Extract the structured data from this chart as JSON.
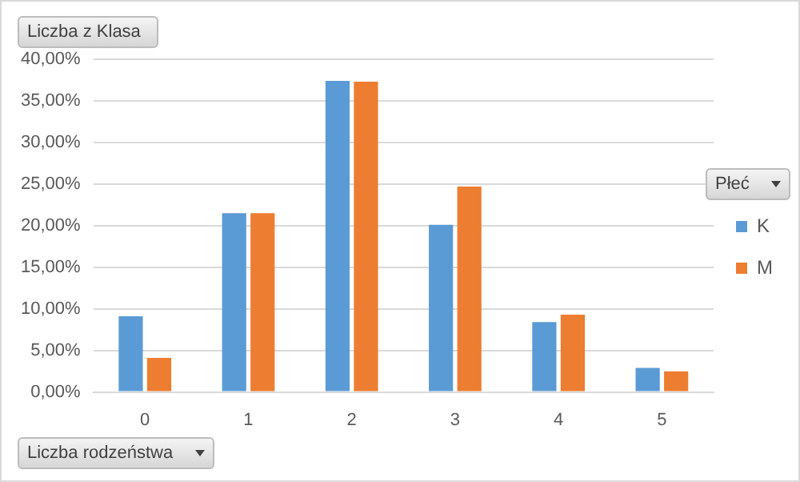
{
  "chart_data": {
    "type": "bar",
    "ylabel": "Liczba z Klasa",
    "xlabel": "Liczba rodzeństwa",
    "legend_title": "Płeć",
    "categories": [
      "0",
      "1",
      "2",
      "3",
      "4",
      "5"
    ],
    "series": [
      {
        "name": "K",
        "color": "#5b9bd5",
        "values": [
          9.1,
          21.5,
          37.4,
          20.1,
          8.4,
          2.9
        ]
      },
      {
        "name": "M",
        "color": "#ed7d31",
        "values": [
          4.1,
          21.5,
          37.3,
          24.7,
          9.3,
          2.5
        ]
      }
    ],
    "ylim": [
      0,
      40
    ],
    "yticks": [
      {
        "value": 0,
        "label": "0,00%"
      },
      {
        "value": 5,
        "label": "5,00%"
      },
      {
        "value": 10,
        "label": "10,00%"
      },
      {
        "value": 15,
        "label": "15,00%"
      },
      {
        "value": 20,
        "label": "20,00%"
      },
      {
        "value": 25,
        "label": "25,00%"
      },
      {
        "value": 30,
        "label": "30,00%"
      },
      {
        "value": 35,
        "label": "35,00%"
      },
      {
        "value": 40,
        "label": "40,00%"
      }
    ],
    "grid": "y",
    "legend": "right"
  }
}
